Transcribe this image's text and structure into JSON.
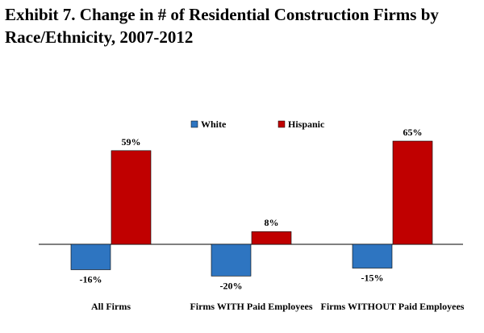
{
  "chart_data": {
    "type": "bar",
    "title": "Exhibit 7.  Change in # of Residential Construction Firms by Race/Ethnicity, 2007-2012",
    "categories": [
      "All Firms",
      "Firms WITH Paid Employees",
      "Firms WITHOUT Paid Employees"
    ],
    "series": [
      {
        "name": "White",
        "values": [
          -16,
          -20,
          -15
        ],
        "color": "#2e75c1"
      },
      {
        "name": "Hispanic",
        "values": [
          59,
          8,
          65
        ],
        "color": "#c00000"
      }
    ],
    "value_labels": {
      "White": [
        "-16%",
        "-20%",
        "-15%"
      ],
      "Hispanic": [
        "59%",
        "8%",
        "65%"
      ]
    },
    "unit": "%",
    "xlabel": "",
    "ylabel": "",
    "grid": false,
    "legend": "top-center"
  }
}
